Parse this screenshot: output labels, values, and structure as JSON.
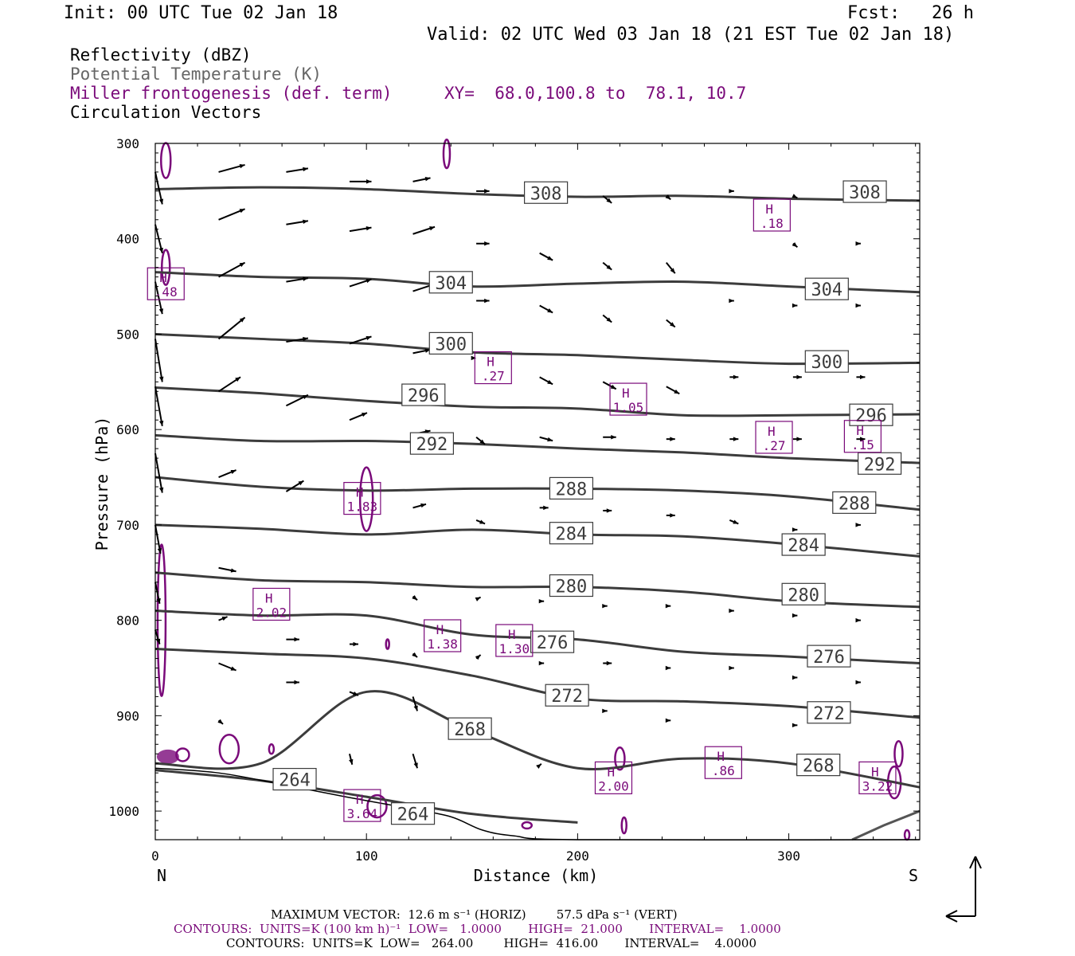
{
  "header": {
    "init": "Init: 00 UTC Tue 02 Jan 18",
    "fcst": "Fcst:   26 h",
    "valid": "Valid: 02 UTC Wed 03 Jan 18 (21 EST Tue 02 Jan 18)"
  },
  "legend": {
    "reflectivity": "Reflectivity (dBZ)",
    "theta": "Potential Temperature (K)",
    "miller": "Miller frontogenesis (def. term)",
    "xy": "XY=  68.0,100.8 to  78.1, 10.7",
    "vectors": "Circulation Vectors"
  },
  "colors": {
    "theta": "#3c3c3c",
    "frontogenesis": "#7a0a7a",
    "vectors": "#000000",
    "surface": "#000000"
  },
  "footer": {
    "max_vector": "MAXIMUM VECTOR:  12.6 m s⁻¹ (HORIZ)        57.5 dPa s⁻¹ (VERT)",
    "contours_front": "CONTOURS:  UNITS=K (100 km h)⁻¹  LOW=   1.0000       HIGH=  21.000       INTERVAL=    1.0000",
    "contours_theta": "CONTOURS:  UNITS=K  LOW=   264.00        HIGH=  416.00       INTERVAL=    4.0000"
  },
  "chart_data": {
    "type": "cross-section",
    "xlabel": "Distance (km)",
    "ylabel": "Pressure (hPa)",
    "xlim": [
      0,
      362
    ],
    "ylim": [
      1030,
      300
    ],
    "x_ticks": [
      0,
      100,
      200,
      300
    ],
    "y_ticks": [
      300,
      400,
      500,
      600,
      700,
      800,
      900,
      1000
    ],
    "end_labels": {
      "left": "N",
      "right": "S"
    },
    "theta_contours": [
      {
        "value": 308,
        "points": [
          [
            0,
            348
          ],
          [
            50,
            346
          ],
          [
            100,
            348
          ],
          [
            150,
            353
          ],
          [
            200,
            356
          ],
          [
            250,
            355
          ],
          [
            300,
            358
          ],
          [
            362,
            360
          ]
        ],
        "labels": [
          [
            185,
            352
          ],
          [
            336,
            351
          ]
        ]
      },
      {
        "value": 304,
        "points": [
          [
            0,
            435
          ],
          [
            50,
            440
          ],
          [
            100,
            442
          ],
          [
            150,
            450
          ],
          [
            200,
            447
          ],
          [
            250,
            445
          ],
          [
            300,
            450
          ],
          [
            362,
            456
          ]
        ],
        "labels": [
          [
            140,
            446
          ],
          [
            318,
            453
          ]
        ]
      },
      {
        "value": 300,
        "points": [
          [
            0,
            500
          ],
          [
            50,
            505
          ],
          [
            100,
            510
          ],
          [
            150,
            519
          ],
          [
            200,
            522
          ],
          [
            250,
            527
          ],
          [
            300,
            531
          ],
          [
            362,
            530
          ]
        ],
        "labels": [
          [
            140,
            510
          ],
          [
            318,
            529
          ]
        ]
      },
      {
        "value": 296,
        "points": [
          [
            0,
            556
          ],
          [
            50,
            562
          ],
          [
            100,
            570
          ],
          [
            150,
            576
          ],
          [
            200,
            578
          ],
          [
            250,
            585
          ],
          [
            300,
            585
          ],
          [
            362,
            584
          ]
        ],
        "labels": [
          [
            127,
            564
          ],
          [
            339,
            585
          ]
        ]
      },
      {
        "value": 292,
        "points": [
          [
            0,
            606
          ],
          [
            50,
            612
          ],
          [
            100,
            612
          ],
          [
            150,
            615
          ],
          [
            200,
            620
          ],
          [
            250,
            624
          ],
          [
            300,
            630
          ],
          [
            362,
            635
          ]
        ],
        "labels": [
          [
            131,
            615
          ],
          [
            343,
            636
          ]
        ]
      },
      {
        "value": 288,
        "points": [
          [
            0,
            650
          ],
          [
            50,
            660
          ],
          [
            100,
            664
          ],
          [
            150,
            662
          ],
          [
            200,
            662
          ],
          [
            250,
            664
          ],
          [
            300,
            670
          ],
          [
            362,
            684
          ]
        ],
        "labels": [
          [
            197,
            662
          ],
          [
            331,
            677
          ]
        ]
      },
      {
        "value": 284,
        "points": [
          [
            0,
            700
          ],
          [
            50,
            704
          ],
          [
            100,
            710
          ],
          [
            150,
            705
          ],
          [
            200,
            710
          ],
          [
            250,
            712
          ],
          [
            300,
            720
          ],
          [
            362,
            733
          ]
        ],
        "labels": [
          [
            197,
            709
          ],
          [
            307,
            721
          ]
        ]
      },
      {
        "value": 280,
        "points": [
          [
            0,
            750
          ],
          [
            50,
            758
          ],
          [
            100,
            760
          ],
          [
            150,
            765
          ],
          [
            200,
            765
          ],
          [
            250,
            770
          ],
          [
            300,
            780
          ],
          [
            362,
            786
          ]
        ],
        "labels": [
          [
            197,
            764
          ],
          [
            307,
            773
          ]
        ]
      },
      {
        "value": 276,
        "points": [
          [
            0,
            790
          ],
          [
            50,
            795
          ],
          [
            100,
            795
          ],
          [
            150,
            815
          ],
          [
            200,
            820
          ],
          [
            250,
            833
          ],
          [
            300,
            838
          ],
          [
            362,
            845
          ]
        ],
        "labels": [
          [
            188,
            823
          ],
          [
            319,
            838
          ]
        ]
      },
      {
        "value": 272,
        "points": [
          [
            0,
            830
          ],
          [
            50,
            835
          ],
          [
            100,
            840
          ],
          [
            150,
            858
          ],
          [
            200,
            882
          ],
          [
            250,
            885
          ],
          [
            300,
            890
          ],
          [
            362,
            902
          ]
        ],
        "labels": [
          [
            195,
            879
          ],
          [
            319,
            897
          ]
        ]
      },
      {
        "value": 268,
        "points": [
          [
            0,
            950
          ],
          [
            50,
            950
          ],
          [
            100,
            875
          ],
          [
            150,
            915
          ],
          [
            200,
            955
          ],
          [
            250,
            945
          ],
          [
            300,
            950
          ],
          [
            362,
            975
          ]
        ],
        "labels": [
          [
            149,
            914
          ],
          [
            314,
            952
          ]
        ]
      },
      {
        "value": 264,
        "points": [
          [
            0,
            957
          ],
          [
            50,
            968
          ],
          [
            100,
            985
          ],
          [
            150,
            1003
          ],
          [
            200,
            1012
          ]
        ],
        "labels": [
          [
            66,
            967
          ],
          [
            122,
            1003
          ]
        ]
      }
    ],
    "frontogenesis_maxima": [
      {
        "label": "H",
        "value": ".18",
        "x": 292,
        "y": 376
      },
      {
        "label": "H",
        "value": ".48",
        "x": 5,
        "y": 448
      },
      {
        "label": "H",
        "value": ".27",
        "x": 160,
        "y": 536
      },
      {
        "label": "H",
        "value": "1.05",
        "x": 224,
        "y": 569
      },
      {
        "label": "H",
        "value": ".27",
        "x": 293,
        "y": 609
      },
      {
        "label": "H",
        "value": ".15",
        "x": 335,
        "y": 608
      },
      {
        "label": "H",
        "value": "1.83",
        "x": 98,
        "y": 673
      },
      {
        "label": "H",
        "value": "2.02",
        "x": 55,
        "y": 784
      },
      {
        "label": "H",
        "value": "1.38",
        "x": 136,
        "y": 817
      },
      {
        "label": "H",
        "value": "1.30",
        "x": 170,
        "y": 822
      },
      {
        "label": "H",
        "value": ".86",
        "x": 269,
        "y": 950
      },
      {
        "label": "H",
        "value": "2.00",
        "x": 217,
        "y": 966
      },
      {
        "label": "H",
        "value": "3.22",
        "x": 342,
        "y": 966
      },
      {
        "label": "H",
        "value": "3.64",
        "x": 98,
        "y": 995
      }
    ],
    "circulation_vectors": [
      {
        "x": 0,
        "p": 330,
        "u": 8,
        "w": 45
      },
      {
        "x": 0,
        "p": 385,
        "u": 8,
        "w": 40
      },
      {
        "x": 0,
        "p": 445,
        "u": 8,
        "w": 45
      },
      {
        "x": 0,
        "p": 505,
        "u": 8,
        "w": 60
      },
      {
        "x": 0,
        "p": 555,
        "u": 8,
        "w": 55
      },
      {
        "x": 0,
        "p": 625,
        "u": 8,
        "w": 55
      },
      {
        "x": 0,
        "p": 700,
        "u": 6,
        "w": 40
      },
      {
        "x": 0,
        "p": 760,
        "u": 5,
        "w": 30
      },
      {
        "x": 0,
        "p": 810,
        "u": 5,
        "w": 20
      },
      {
        "x": 30,
        "p": 330,
        "u": 30,
        "w": -10
      },
      {
        "x": 30,
        "p": 380,
        "u": 30,
        "w": -15
      },
      {
        "x": 30,
        "p": 440,
        "u": 30,
        "w": -20
      },
      {
        "x": 30,
        "p": 505,
        "u": 30,
        "w": -30
      },
      {
        "x": 30,
        "p": 560,
        "u": 25,
        "w": -20
      },
      {
        "x": 30,
        "p": 650,
        "u": 20,
        "w": -10
      },
      {
        "x": 30,
        "p": 745,
        "u": 20,
        "w": 5
      },
      {
        "x": 30,
        "p": 800,
        "u": 10,
        "w": -5
      },
      {
        "x": 30,
        "p": 845,
        "u": 20,
        "w": 10
      },
      {
        "x": 30,
        "p": 905,
        "u": 5,
        "w": 5
      },
      {
        "x": 62,
        "p": 330,
        "u": 25,
        "w": -5
      },
      {
        "x": 62,
        "p": 385,
        "u": 25,
        "w": -5
      },
      {
        "x": 62,
        "p": 445,
        "u": 25,
        "w": -5
      },
      {
        "x": 62,
        "p": 508,
        "u": 25,
        "w": -5
      },
      {
        "x": 62,
        "p": 575,
        "u": 25,
        "w": -15
      },
      {
        "x": 62,
        "p": 665,
        "u": 20,
        "w": -15
      },
      {
        "x": 62,
        "p": 820,
        "u": 15,
        "w": 0
      },
      {
        "x": 62,
        "p": 865,
        "u": 15,
        "w": 0
      },
      {
        "x": 92,
        "p": 340,
        "u": 25,
        "w": 0
      },
      {
        "x": 92,
        "p": 392,
        "u": 25,
        "w": -5
      },
      {
        "x": 92,
        "p": 450,
        "u": 25,
        "w": -10
      },
      {
        "x": 92,
        "p": 510,
        "u": 25,
        "w": -10
      },
      {
        "x": 92,
        "p": 590,
        "u": 20,
        "w": -10
      },
      {
        "x": 92,
        "p": 825,
        "u": 10,
        "w": 0
      },
      {
        "x": 92,
        "p": 875,
        "u": 10,
        "w": 5
      },
      {
        "x": 92,
        "p": 940,
        "u": 3,
        "w": 15
      },
      {
        "x": 122,
        "p": 340,
        "u": 20,
        "w": -5
      },
      {
        "x": 122,
        "p": 395,
        "u": 25,
        "w": -10
      },
      {
        "x": 122,
        "p": 455,
        "u": 25,
        "w": -10
      },
      {
        "x": 122,
        "p": 520,
        "u": 20,
        "w": -5
      },
      {
        "x": 122,
        "p": 605,
        "u": 20,
        "w": -5
      },
      {
        "x": 122,
        "p": 682,
        "u": 15,
        "w": -5
      },
      {
        "x": 122,
        "p": 775,
        "u": 5,
        "w": 5
      },
      {
        "x": 122,
        "p": 835,
        "u": 5,
        "w": 5
      },
      {
        "x": 122,
        "p": 880,
        "u": 5,
        "w": 20
      },
      {
        "x": 122,
        "p": 940,
        "u": 5,
        "w": 20
      },
      {
        "x": 152,
        "p": 350,
        "u": 15,
        "w": 0
      },
      {
        "x": 152,
        "p": 405,
        "u": 15,
        "w": 0
      },
      {
        "x": 152,
        "p": 465,
        "u": 15,
        "w": 0
      },
      {
        "x": 152,
        "p": 525,
        "u": 0,
        "w": 0
      },
      {
        "x": 152,
        "p": 608,
        "u": 10,
        "w": 10
      },
      {
        "x": 152,
        "p": 695,
        "u": 10,
        "w": 5
      },
      {
        "x": 152,
        "p": 778,
        "u": 5,
        "w": -3
      },
      {
        "x": 152,
        "p": 840,
        "u": 5,
        "w": -5
      },
      {
        "x": 182,
        "p": 415,
        "u": 15,
        "w": 10
      },
      {
        "x": 182,
        "p": 470,
        "u": 15,
        "w": 10
      },
      {
        "x": 182,
        "p": 545,
        "u": 15,
        "w": 10
      },
      {
        "x": 182,
        "p": 608,
        "u": 15,
        "w": 5
      },
      {
        "x": 182,
        "p": 682,
        "u": 10,
        "w": 0
      },
      {
        "x": 182,
        "p": 780,
        "u": 5,
        "w": 0
      },
      {
        "x": 182,
        "p": 845,
        "u": 5,
        "w": 0
      },
      {
        "x": 182,
        "p": 952,
        "u": 2,
        "w": -2
      },
      {
        "x": 212,
        "p": 355,
        "u": 10,
        "w": 10
      },
      {
        "x": 212,
        "p": 425,
        "u": 10,
        "w": 10
      },
      {
        "x": 212,
        "p": 480,
        "u": 10,
        "w": 10
      },
      {
        "x": 212,
        "p": 550,
        "u": 15,
        "w": 10
      },
      {
        "x": 212,
        "p": 608,
        "u": 15,
        "w": 0
      },
      {
        "x": 212,
        "p": 685,
        "u": 10,
        "w": 0
      },
      {
        "x": 212,
        "p": 785,
        "u": 5,
        "w": 0
      },
      {
        "x": 212,
        "p": 845,
        "u": 10,
        "w": 0
      },
      {
        "x": 212,
        "p": 895,
        "u": 5,
        "w": 0
      },
      {
        "x": 242,
        "p": 355,
        "u": 5,
        "w": 5
      },
      {
        "x": 242,
        "p": 425,
        "u": 10,
        "w": 15
      },
      {
        "x": 242,
        "p": 485,
        "u": 10,
        "w": 10
      },
      {
        "x": 242,
        "p": 555,
        "u": 15,
        "w": 10
      },
      {
        "x": 242,
        "p": 610,
        "u": 10,
        "w": 0
      },
      {
        "x": 242,
        "p": 690,
        "u": 10,
        "w": 0
      },
      {
        "x": 242,
        "p": 785,
        "u": 5,
        "w": 0
      },
      {
        "x": 242,
        "p": 850,
        "u": 5,
        "w": 0
      },
      {
        "x": 242,
        "p": 905,
        "u": 5,
        "w": 0
      },
      {
        "x": 272,
        "p": 350,
        "u": 5,
        "w": 0
      },
      {
        "x": 272,
        "p": 465,
        "u": 5,
        "w": 0
      },
      {
        "x": 272,
        "p": 545,
        "u": 10,
        "w": 0
      },
      {
        "x": 272,
        "p": 610,
        "u": 10,
        "w": 0
      },
      {
        "x": 272,
        "p": 695,
        "u": 10,
        "w": 5
      },
      {
        "x": 272,
        "p": 790,
        "u": 5,
        "w": 0
      },
      {
        "x": 272,
        "p": 850,
        "u": 5,
        "w": 0
      },
      {
        "x": 302,
        "p": 355,
        "u": 5,
        "w": 3
      },
      {
        "x": 302,
        "p": 405,
        "u": 5,
        "w": 5
      },
      {
        "x": 302,
        "p": 470,
        "u": 5,
        "w": 0
      },
      {
        "x": 302,
        "p": 545,
        "u": 10,
        "w": 0
      },
      {
        "x": 302,
        "p": 610,
        "u": 10,
        "w": 0
      },
      {
        "x": 302,
        "p": 705,
        "u": 5,
        "w": 0
      },
      {
        "x": 302,
        "p": 795,
        "u": 5,
        "w": 0
      },
      {
        "x": 302,
        "p": 860,
        "u": 5,
        "w": 0
      },
      {
        "x": 302,
        "p": 910,
        "u": 5,
        "w": 0
      },
      {
        "x": 332,
        "p": 405,
        "u": 5,
        "w": 0
      },
      {
        "x": 332,
        "p": 470,
        "u": 5,
        "w": 0
      },
      {
        "x": 332,
        "p": 545,
        "u": 10,
        "w": 0
      },
      {
        "x": 332,
        "p": 610,
        "u": 10,
        "w": 0
      },
      {
        "x": 332,
        "p": 700,
        "u": 5,
        "w": 0
      },
      {
        "x": 332,
        "p": 800,
        "u": 5,
        "w": 0
      },
      {
        "x": 332,
        "p": 865,
        "u": 5,
        "w": 0
      }
    ],
    "reference_vector": {
      "horiz": "12.6 m s-1",
      "vert": "57.5 dPa s-1"
    }
  }
}
